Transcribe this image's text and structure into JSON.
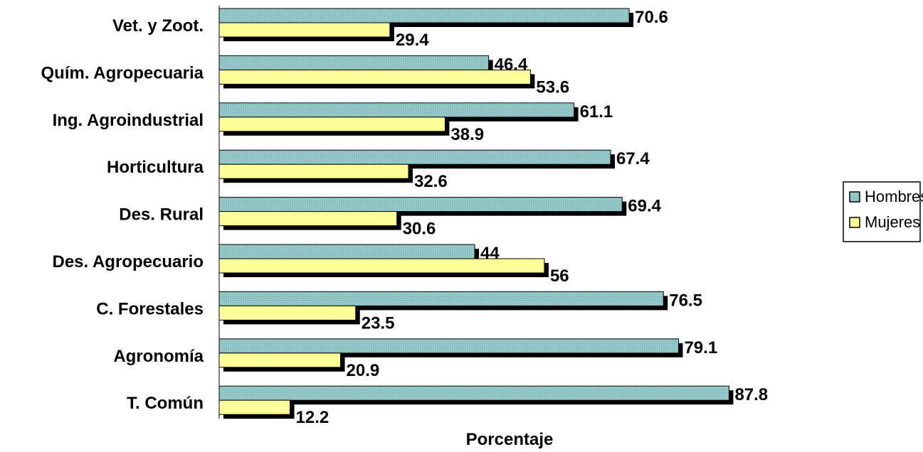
{
  "chart_data": {
    "type": "bar",
    "orientation": "horizontal",
    "categories": [
      "Vet. y Zoot.",
      "Quím. Agropecuaria",
      "Ing. Agroindustrial",
      "Horticultura",
      "Des. Rural",
      "Des. Agropecuario",
      "C. Forestales",
      "Agronomía",
      "T. Común"
    ],
    "series": [
      {
        "name": "Hombres",
        "color": "#99CCCC",
        "values": [
          70.6,
          46.4,
          61.1,
          67.4,
          69.4,
          44,
          76.5,
          79.1,
          87.8
        ],
        "labels": [
          "70.6",
          "46.4",
          "61.1",
          "67.4",
          "69.4",
          "44",
          "76.5",
          "79.1",
          "87.8"
        ]
      },
      {
        "name": "Mujeres",
        "color": "#FFFF99",
        "values": [
          29.4,
          53.6,
          38.9,
          32.6,
          30.6,
          56,
          23.5,
          20.9,
          12.2
        ],
        "labels": [
          "29.4",
          "53.6",
          "38.9",
          "32.6",
          "30.6",
          "56",
          "23.5",
          "20.9",
          "12.2"
        ]
      }
    ],
    "title": "",
    "xlabel": "Porcentaje",
    "ylabel": "",
    "xlim": [
      0,
      100
    ],
    "grid": false,
    "legend": "right",
    "shadow_color": "#000000"
  }
}
